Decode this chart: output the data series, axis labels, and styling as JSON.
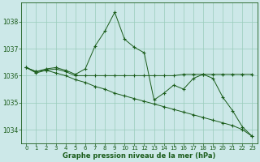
{
  "title": "Graphe pression niveau de la mer (hPa)",
  "background_color": "#cce8e8",
  "grid_color": "#99ccbb",
  "line_color": "#1a5c1a",
  "xlim": [
    -0.5,
    23.5
  ],
  "ylim": [
    1033.5,
    1038.7
  ],
  "yticks": [
    1034,
    1035,
    1036,
    1037,
    1038
  ],
  "xticks": [
    0,
    1,
    2,
    3,
    4,
    5,
    6,
    7,
    8,
    9,
    10,
    11,
    12,
    13,
    14,
    15,
    16,
    17,
    18,
    19,
    20,
    21,
    22,
    23
  ],
  "series": [
    {
      "x": [
        0,
        1,
        2,
        3,
        4,
        5,
        6,
        7,
        8,
        9,
        10,
        11,
        12,
        13,
        14,
        15,
        16,
        17,
        18,
        19,
        20,
        21,
        22,
        23
      ],
      "y": [
        1036.3,
        1036.15,
        1036.25,
        1036.3,
        1036.2,
        1036.05,
        1036.25,
        1037.1,
        1037.65,
        1038.35,
        1037.35,
        1037.05,
        1036.85,
        1035.1,
        1035.35,
        1035.65,
        1035.5,
        1035.9,
        1036.05,
        1035.9,
        1035.2,
        1034.7,
        1034.1,
        1033.75
      ]
    },
    {
      "x": [
        0,
        1,
        2,
        3,
        4,
        5,
        6,
        7,
        8,
        9,
        10,
        11,
        12,
        13,
        14,
        15,
        16,
        17,
        18,
        19,
        20,
        21,
        22,
        23
      ],
      "y": [
        1036.3,
        1036.15,
        1036.2,
        1036.25,
        1036.15,
        1036.0,
        1036.0,
        1036.0,
        1036.0,
        1036.0,
        1036.0,
        1036.0,
        1036.0,
        1036.0,
        1036.0,
        1036.0,
        1036.05,
        1036.05,
        1036.05,
        1036.05,
        1036.05,
        1036.05,
        1036.05,
        1036.05
      ]
    },
    {
      "x": [
        0,
        1,
        2,
        3,
        4,
        5,
        6,
        7,
        8,
        9,
        10,
        11,
        12,
        13,
        14,
        15,
        16,
        17,
        18,
        19,
        20,
        21,
        22,
        23
      ],
      "y": [
        1036.3,
        1036.1,
        1036.2,
        1036.1,
        1036.0,
        1035.85,
        1035.75,
        1035.6,
        1035.5,
        1035.35,
        1035.25,
        1035.15,
        1035.05,
        1034.95,
        1034.85,
        1034.75,
        1034.65,
        1034.55,
        1034.45,
        1034.35,
        1034.25,
        1034.15,
        1034.0,
        1033.75
      ]
    }
  ]
}
